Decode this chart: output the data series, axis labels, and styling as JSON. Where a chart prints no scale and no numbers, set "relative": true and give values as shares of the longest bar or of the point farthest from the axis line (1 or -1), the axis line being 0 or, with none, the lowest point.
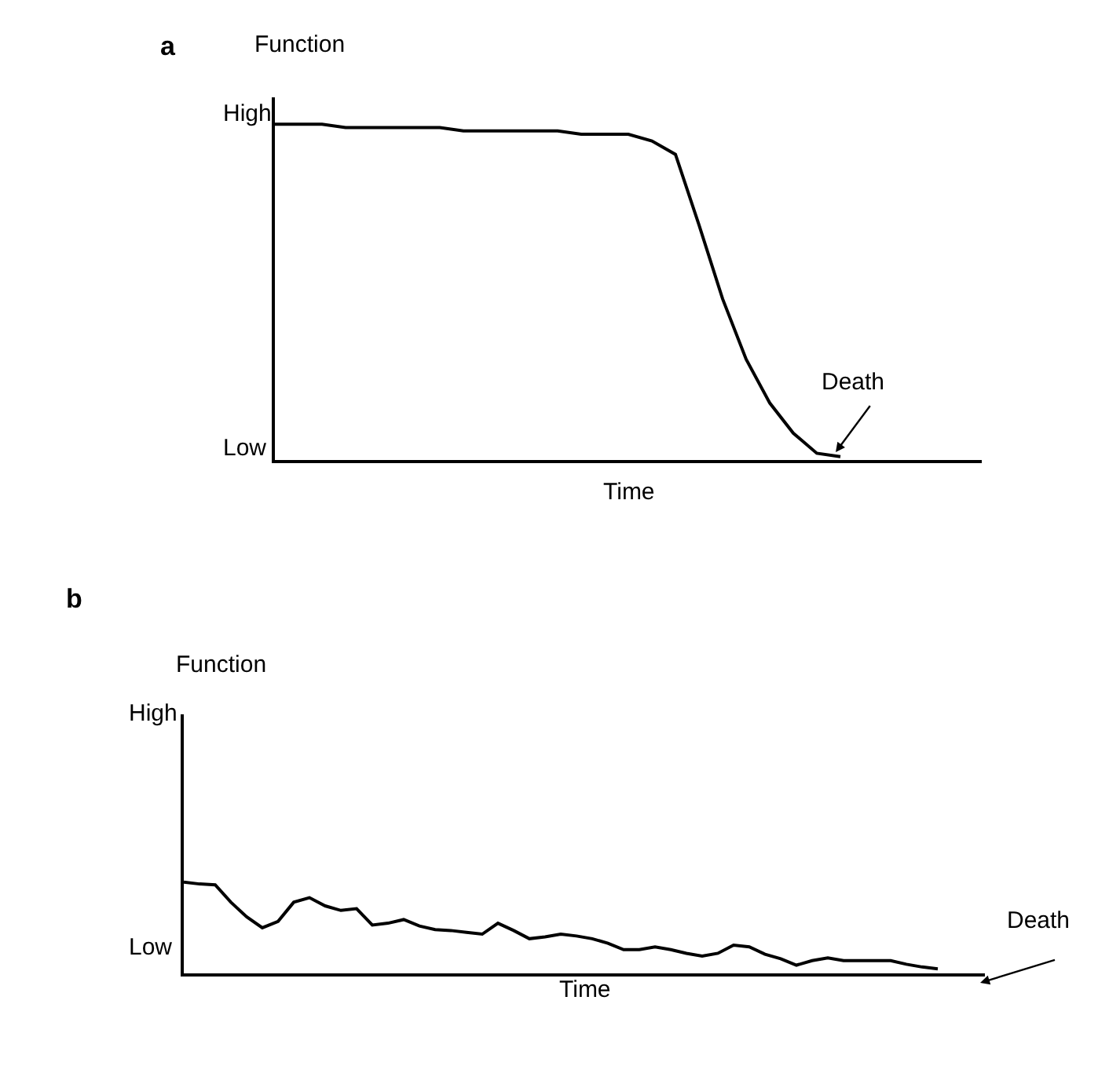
{
  "chart_data": [
    {
      "type": "line",
      "title": "a",
      "ylabel": "Function",
      "xlabel": "Time",
      "relative": true,
      "marker": "none",
      "line_style": "solid",
      "annotations": [
        "High",
        "Low",
        "Death"
      ],
      "categories": [
        null,
        null,
        null,
        null,
        null,
        null,
        null,
        null,
        null,
        null,
        null,
        null,
        null,
        null,
        null,
        null,
        null,
        null,
        null,
        null,
        null,
        null,
        null,
        null,
        null,
        null,
        null,
        null,
        null,
        null,
        null
      ],
      "series": [
        {
          "color": "#000000",
          "values": [
            1.0,
            1.0,
            1.0,
            0.99,
            0.99,
            0.99,
            0.99,
            0.99,
            0.98,
            0.98,
            0.98,
            0.98,
            0.98,
            0.97,
            0.97,
            0.97,
            0.95,
            0.91,
            0.7,
            0.48,
            0.3,
            0.17,
            0.08,
            0.02,
            0.01,
            null,
            null,
            null,
            null,
            null,
            null
          ]
        }
      ]
    },
    {
      "type": "line",
      "title": "b",
      "ylabel": "Function",
      "xlabel": "Time",
      "relative": true,
      "marker": "none",
      "line_style": "solid",
      "annotations": [
        "High",
        "Low",
        "Death"
      ],
      "categories": [
        null,
        null,
        null,
        null,
        null,
        null,
        null,
        null,
        null,
        null,
        null,
        null,
        null,
        null,
        null,
        null,
        null,
        null,
        null,
        null,
        null,
        null,
        null,
        null,
        null,
        null,
        null,
        null,
        null,
        null,
        null,
        null,
        null,
        null,
        null,
        null,
        null,
        null,
        null,
        null,
        null,
        null,
        null,
        null,
        null,
        null,
        null,
        null,
        null,
        null,
        null,
        null
      ],
      "series": [
        {
          "color": "#000000",
          "values": [
            1.0,
            0.98,
            0.97,
            0.78,
            0.62,
            0.5,
            0.57,
            0.78,
            0.83,
            0.74,
            0.69,
            0.71,
            0.53,
            0.55,
            0.59,
            0.52,
            0.48,
            0.47,
            0.45,
            0.43,
            0.55,
            0.47,
            0.38,
            0.4,
            0.43,
            0.41,
            0.38,
            0.33,
            0.26,
            0.26,
            0.29,
            0.26,
            0.22,
            0.19,
            0.22,
            0.31,
            0.29,
            0.21,
            0.16,
            0.09,
            0.14,
            0.17,
            0.14,
            0.14,
            0.14,
            0.14,
            0.1,
            0.07,
            0.05,
            null,
            null,
            null
          ]
        }
      ]
    }
  ]
}
